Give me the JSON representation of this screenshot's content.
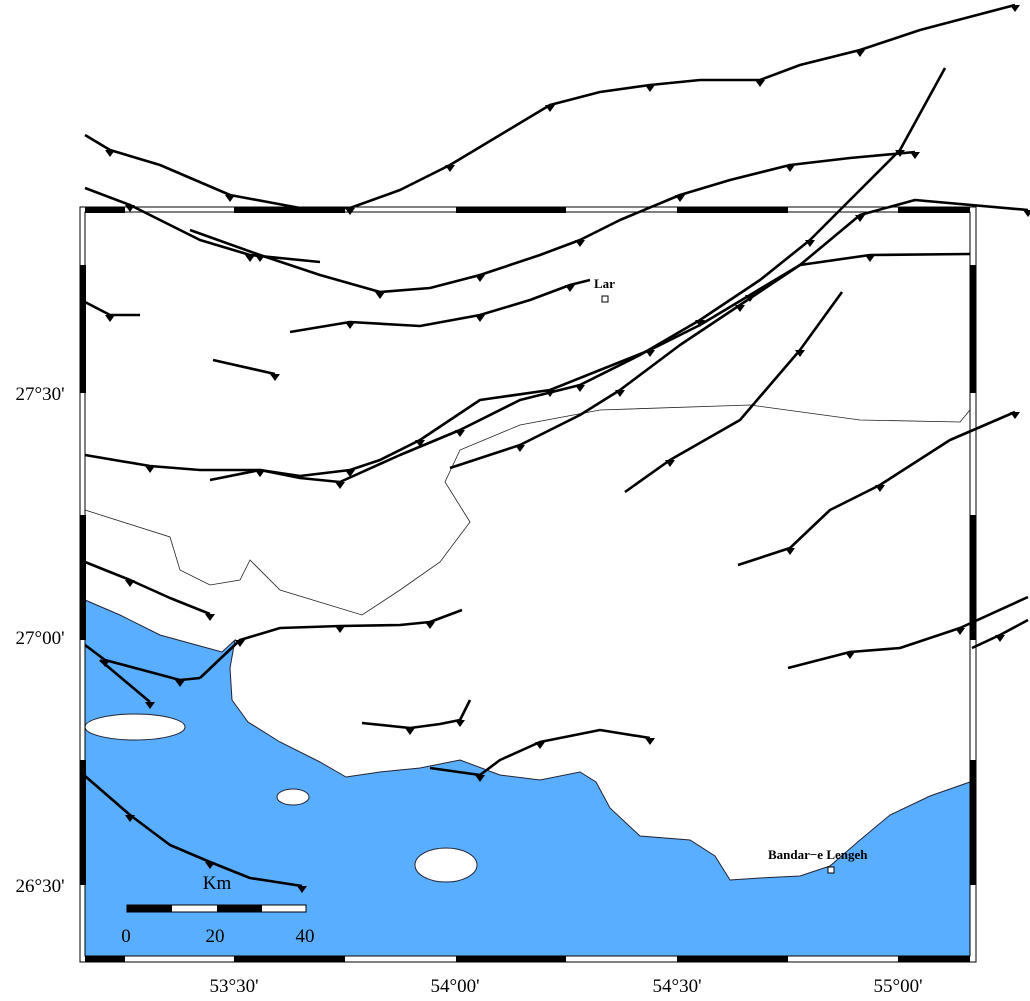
{
  "map": {
    "lat_labels": [
      "27°30'",
      "27°00'",
      "26°30'"
    ],
    "lon_labels": [
      "53°30'",
      "54°00'",
      "54°30'",
      "55°00'"
    ],
    "places": [
      {
        "label": "Lar"
      },
      {
        "label": "Bandar−e Lengeh"
      }
    ],
    "scale_bar": {
      "unit": "Km",
      "labels": [
        "0",
        "20",
        "40"
      ]
    }
  }
}
